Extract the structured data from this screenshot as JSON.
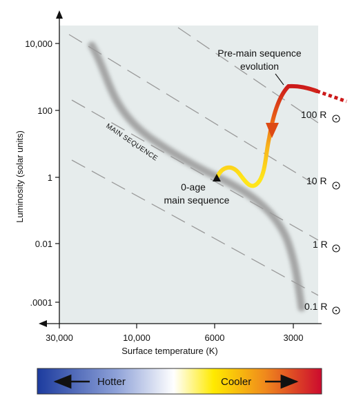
{
  "chart_data": {
    "type": "scatter",
    "title": "",
    "xlabel": "Surface temperature (K)",
    "ylabel": "Luminosity (solar units)",
    "x_ticks": [
      "30,000",
      "10,000",
      "6000",
      "3000"
    ],
    "y_ticks": [
      "10,000",
      "100",
      "1",
      "0.01",
      ".0001"
    ],
    "x_direction": "decreasing",
    "y_scale": "log",
    "grid": false,
    "series": [
      {
        "name": "MAIN SEQUENCE",
        "style": "gray band",
        "points": [
          {
            "T": 22000,
            "L": 10000
          },
          {
            "T": 17000,
            "L": 2000
          },
          {
            "T": 13000,
            "L": 200
          },
          {
            "T": 10500,
            "L": 40
          },
          {
            "T": 9000,
            "L": 12
          },
          {
            "T": 7500,
            "L": 3
          },
          {
            "T": 6000,
            "L": 1
          },
          {
            "T": 5200,
            "L": 0.4
          },
          {
            "T": 4600,
            "L": 0.12
          },
          {
            "T": 4000,
            "L": 0.03
          },
          {
            "T": 3600,
            "L": 0.006
          },
          {
            "T": 3300,
            "L": 0.0009
          },
          {
            "T": 3000,
            "L": 0.0002
          }
        ]
      },
      {
        "name": "Pre-main sequence evolution",
        "style": "red-to-yellow track with arrow",
        "points": [
          {
            "T": 2600,
            "L": 220
          },
          {
            "T": 3000,
            "L": 300
          },
          {
            "T": 3200,
            "L": 250
          },
          {
            "T": 3500,
            "L": 60
          },
          {
            "T": 3700,
            "L": 14
          },
          {
            "T": 3900,
            "L": 2.5
          },
          {
            "T": 4100,
            "L": 0.6
          },
          {
            "T": 4500,
            "L": 0.8
          },
          {
            "T": 5000,
            "L": 1.8
          },
          {
            "T": 5500,
            "L": 1.6
          },
          {
            "T": 6000,
            "L": 1
          }
        ]
      }
    ],
    "constant_radius_lines": [
      "100 R",
      "10 R",
      "1 R",
      "0.1 R"
    ],
    "annotations": [
      {
        "text": [
          "Pre-main sequence",
          "evolution"
        ]
      },
      {
        "text": [
          "0-age",
          "main sequence"
        ],
        "marker": "triangle",
        "T": 6000,
        "L": 1
      },
      {
        "text": [
          "MAIN SEQUENCE"
        ]
      }
    ],
    "colors": {
      "main_sequence": "#999999",
      "track_hot": "#ffe51a",
      "track_mid": "#f39a1c",
      "track_cool": "#cc1a1a",
      "plot_bg": "#e6ecec"
    }
  },
  "color_bar": {
    "hotter_label": "Hotter",
    "cooler_label": "Cooler",
    "colors": [
      "#1c3b9e",
      "#ffffff",
      "#ffea00",
      "#f08a1c",
      "#cc0a2e"
    ]
  }
}
